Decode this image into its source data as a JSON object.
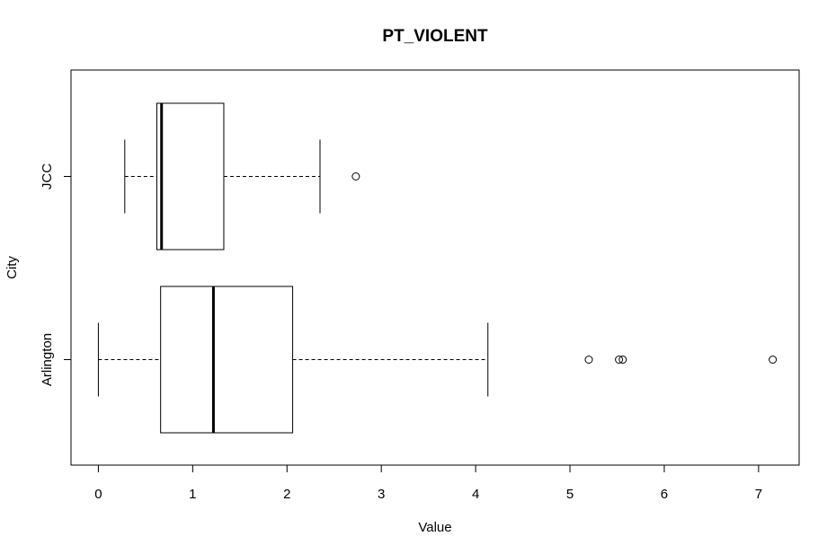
{
  "chart_data": {
    "type": "boxplot",
    "orientation": "horizontal",
    "title": "PT_VIOLENT",
    "xlabel": "Value",
    "ylabel": "City",
    "xlim": [
      -0.29,
      7.43
    ],
    "x_ticks": [
      0,
      1,
      2,
      3,
      4,
      5,
      6,
      7
    ],
    "grid": false,
    "categories": [
      "Arlington",
      "JCC"
    ],
    "boxes": [
      {
        "category": "Arlington",
        "whisker_low": 0.0,
        "q1": 0.66,
        "median": 1.22,
        "q3": 2.06,
        "whisker_high": 4.13,
        "outliers": [
          5.2,
          5.52,
          5.56,
          7.15
        ]
      },
      {
        "category": "JCC",
        "whisker_low": 0.28,
        "q1": 0.62,
        "median": 0.67,
        "q3": 1.33,
        "whisker_high": 2.35,
        "outliers": [
          2.73
        ]
      }
    ]
  }
}
